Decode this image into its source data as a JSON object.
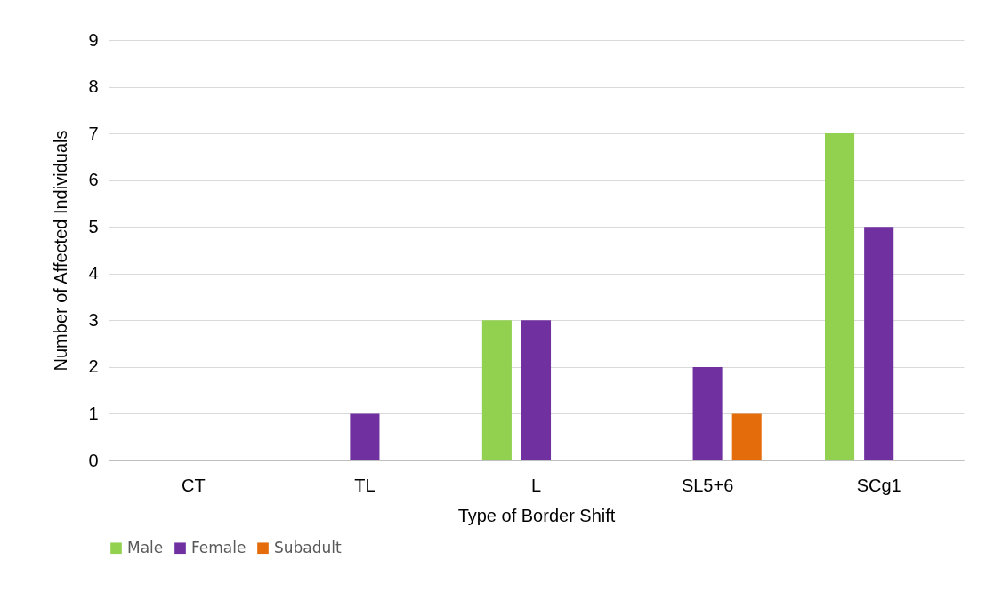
{
  "chart_data": {
    "type": "bar",
    "xlabel": "Type of Border Shift",
    "ylabel": "Number of Affected Individuals",
    "categories": [
      "CT",
      "TL",
      "L",
      "SL5+6",
      "SCg1"
    ],
    "series": [
      {
        "name": "Male",
        "color": "#92d050",
        "values": [
          0,
          0,
          3,
          0,
          7
        ]
      },
      {
        "name": "Female",
        "color": "#7030a0",
        "values": [
          0,
          1,
          3,
          2,
          5
        ]
      },
      {
        "name": "Subadult",
        "color": "#e46c0a",
        "values": [
          0,
          0,
          0,
          1,
          0
        ]
      }
    ],
    "ylim": [
      0,
      9
    ],
    "yticks": [
      0,
      1,
      2,
      3,
      4,
      5,
      6,
      7,
      8,
      9
    ],
    "grid": "y",
    "legend": "bottom"
  }
}
